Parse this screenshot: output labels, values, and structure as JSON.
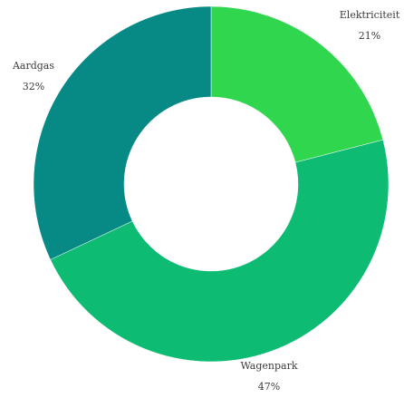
{
  "chart_data": {
    "type": "pie",
    "categories": [
      "Elektriciteit",
      "Wagenpark",
      "Aardgas"
    ],
    "values": [
      21,
      47,
      32
    ],
    "value_labels": [
      "21%",
      "47%",
      "32%"
    ],
    "colors": [
      "#2fd64e",
      "#0dbb73",
      "#078a86"
    ],
    "donut": true
  }
}
